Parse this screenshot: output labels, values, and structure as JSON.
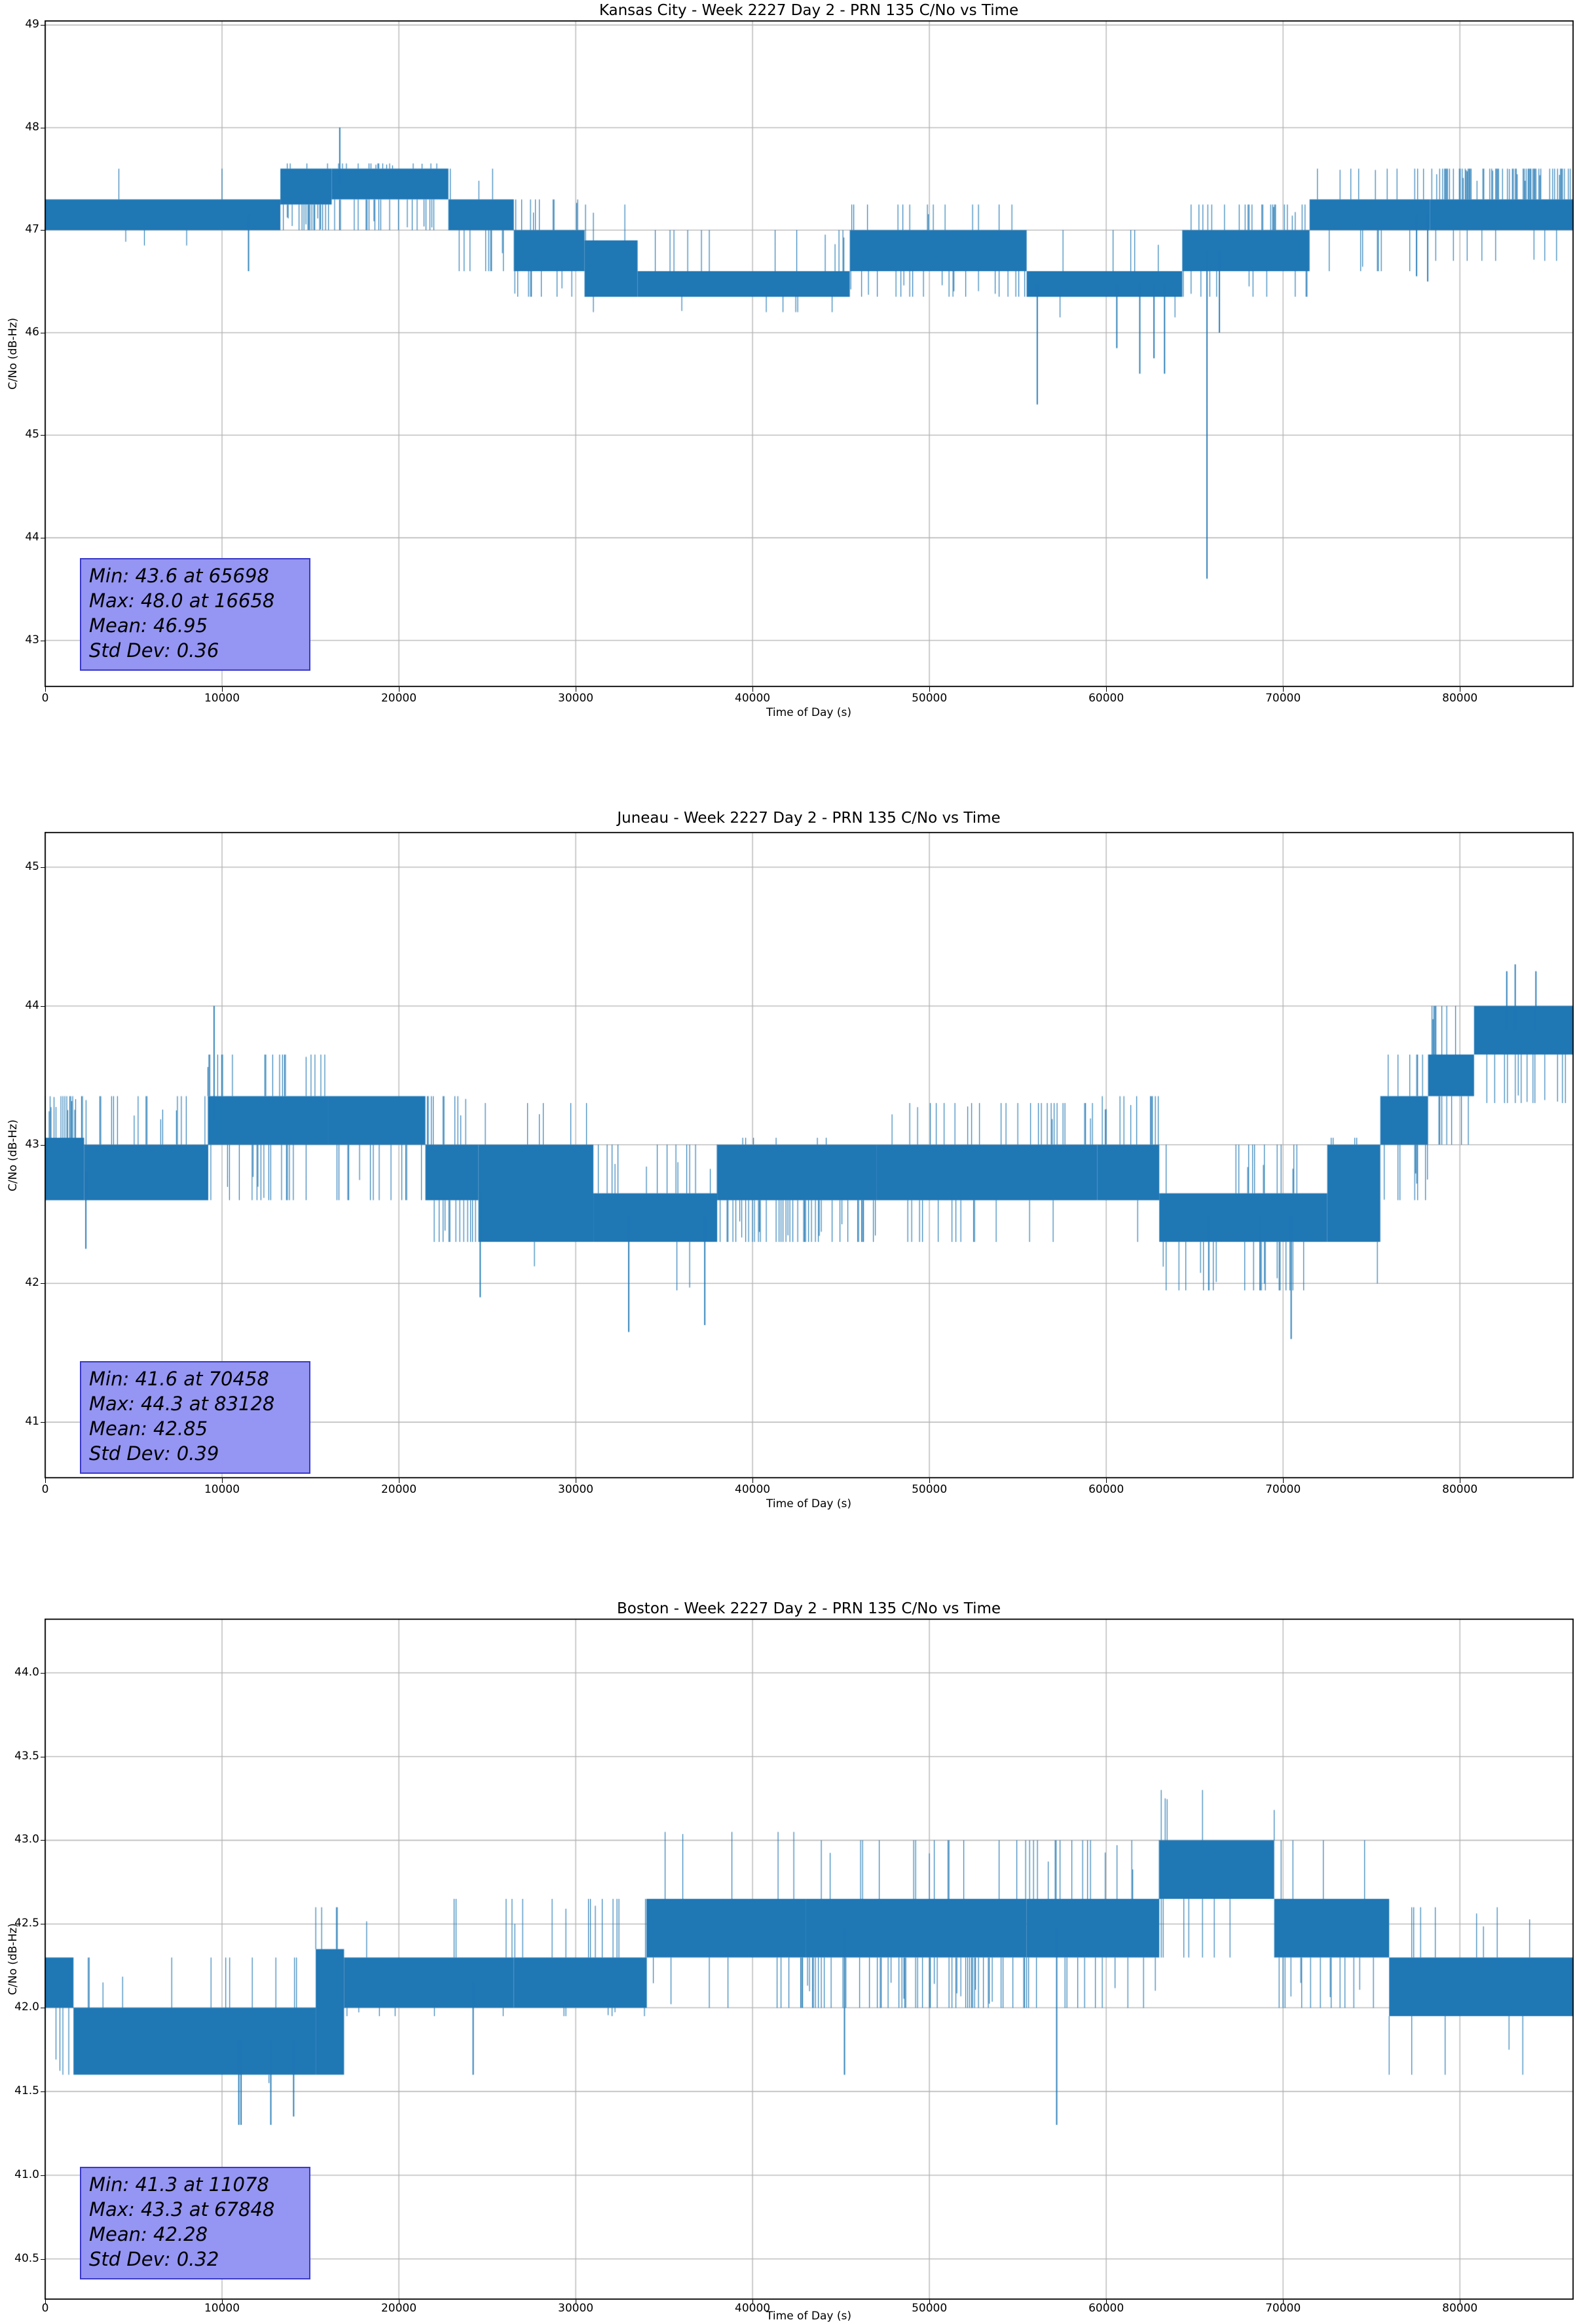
{
  "figure": {
    "background": "#ffffff",
    "line_color": "#1f77b4",
    "grid_color": "#b3b3b3",
    "spine_color": "#000000",
    "stats_box_fill": "#9595f3",
    "stats_box_border": "#3a3ac8"
  },
  "chart_data": [
    {
      "type": "line",
      "title": "Kansas City - Week 2227 Day 2 - PRN 135 C/No vs Time",
      "xlabel": "Time of Day (s)",
      "ylabel": "C/No (dB-Hz)",
      "xlim": [
        0,
        86400
      ],
      "ylim": [
        42.55,
        49.04
      ],
      "xticks": [
        0,
        10000,
        20000,
        30000,
        40000,
        50000,
        60000,
        70000,
        80000
      ],
      "yticks": [
        43,
        44,
        45,
        46,
        47,
        48,
        49
      ],
      "grid": true,
      "stats": {
        "min_value": 43.6,
        "min_time": 65698,
        "max_value": 48.0,
        "max_time": 16658,
        "mean": 46.95,
        "std_dev": 0.36,
        "lines": [
          "Min: 43.6 at 65698",
          "Max: 48.0 at 16658",
          "Mean: 46.95",
          "Std Dev: 0.36"
        ]
      },
      "segments": [
        {
          "t": [
            0,
            13300
          ],
          "core": [
            47.0,
            47.3
          ],
          "up": [
            47.6,
            0.012
          ],
          "down": [
            46.85,
            0.01
          ]
        },
        {
          "t": [
            13300,
            16200
          ],
          "core": [
            47.25,
            47.6
          ],
          "up": [
            47.65,
            0.05
          ],
          "down": [
            47.0,
            0.35
          ]
        },
        {
          "t": [
            16200,
            22800
          ],
          "core": [
            47.3,
            47.6
          ],
          "up": [
            47.65,
            0.08
          ],
          "down": [
            47.0,
            0.15
          ]
        },
        {
          "t": [
            22800,
            26500
          ],
          "core": [
            47.0,
            47.3
          ],
          "up": [
            47.6,
            0.03
          ],
          "down": [
            46.6,
            0.15
          ]
        },
        {
          "t": [
            26500,
            30500
          ],
          "core": [
            46.6,
            47.0
          ],
          "up": [
            47.3,
            0.12
          ],
          "down": [
            46.35,
            0.08
          ]
        },
        {
          "t": [
            30500,
            33500
          ],
          "core": [
            46.35,
            46.9
          ],
          "up": [
            47.25,
            0.1
          ],
          "down": [
            46.2,
            0.04
          ]
        },
        {
          "t": [
            33500,
            45500
          ],
          "core": [
            46.35,
            46.6
          ],
          "up": [
            47.0,
            0.09
          ],
          "down": [
            46.2,
            0.03
          ]
        },
        {
          "t": [
            45500,
            55500
          ],
          "core": [
            46.6,
            47.0
          ],
          "up": [
            47.25,
            0.1
          ],
          "down": [
            46.35,
            0.12
          ]
        },
        {
          "t": [
            55500,
            64300
          ],
          "core": [
            46.35,
            46.6
          ],
          "up": [
            47.0,
            0.05
          ],
          "down": [
            46.15,
            0.03
          ]
        },
        {
          "t": [
            64300,
            71500
          ],
          "core": [
            46.6,
            47.0
          ],
          "up": [
            47.25,
            0.14
          ],
          "down": [
            46.35,
            0.1
          ]
        },
        {
          "t": [
            71500,
            78300
          ],
          "core": [
            47.0,
            47.3
          ],
          "up": [
            47.6,
            0.08
          ],
          "down": [
            46.6,
            0.1
          ]
        },
        {
          "t": [
            78300,
            86400
          ],
          "core": [
            47.0,
            47.3
          ],
          "up": [
            47.6,
            0.45
          ],
          "down": [
            46.7,
            0.05
          ]
        }
      ],
      "spikes": [
        [
          11500,
          46.6
        ],
        [
          16658,
          48.0
        ],
        [
          56100,
          45.3
        ],
        [
          60600,
          45.85
        ],
        [
          61900,
          45.6
        ],
        [
          62700,
          45.75
        ],
        [
          63300,
          45.6
        ],
        [
          65698,
          43.6
        ],
        [
          66400,
          46.0
        ],
        [
          77550,
          46.55
        ],
        [
          78180,
          46.5
        ]
      ]
    },
    {
      "type": "line",
      "title": "Juneau - Week 2227 Day 2 - PRN 135 C/No vs Time",
      "xlabel": "Time of Day (s)",
      "ylabel": "C/No (dB-Hz)",
      "xlim": [
        0,
        86400
      ],
      "ylim": [
        40.6,
        45.25
      ],
      "xticks": [
        0,
        10000,
        20000,
        30000,
        40000,
        50000,
        60000,
        70000,
        80000
      ],
      "yticks": [
        41,
        42,
        43,
        44,
        45
      ],
      "grid": true,
      "stats": {
        "min_value": 41.6,
        "min_time": 70458,
        "max_value": 44.3,
        "max_time": 83128,
        "mean": 42.85,
        "std_dev": 0.39,
        "lines": [
          "Min: 41.6 at 70458",
          "Max: 44.3 at 83128",
          "Mean: 42.85",
          "Std Dev: 0.39"
        ]
      },
      "segments": [
        {
          "t": [
            0,
            2200
          ],
          "core": [
            42.6,
            43.05
          ],
          "up": [
            43.35,
            0.5
          ],
          "down": [
            42.3,
            0.02
          ]
        },
        {
          "t": [
            2200,
            9200
          ],
          "core": [
            42.6,
            43.0
          ],
          "up": [
            43.35,
            0.12
          ],
          "down": [
            42.45,
            0.01
          ]
        },
        {
          "t": [
            9200,
            16000
          ],
          "core": [
            43.0,
            43.35
          ],
          "up": [
            43.65,
            0.18
          ],
          "down": [
            42.6,
            0.18
          ]
        },
        {
          "t": [
            16000,
            21500
          ],
          "core": [
            43.0,
            43.35
          ],
          "up": [
            43.4,
            0.01
          ],
          "down": [
            42.6,
            0.12
          ]
        },
        {
          "t": [
            21500,
            24500
          ],
          "core": [
            42.6,
            43.0
          ],
          "up": [
            43.35,
            0.15
          ],
          "down": [
            42.3,
            0.2
          ]
        },
        {
          "t": [
            24500,
            31000
          ],
          "core": [
            42.3,
            43.0
          ],
          "up": [
            43.3,
            0.05
          ],
          "down": [
            42.0,
            0.02
          ]
        },
        {
          "t": [
            31000,
            38000
          ],
          "core": [
            42.3,
            42.65
          ],
          "up": [
            43.0,
            0.1
          ],
          "down": [
            41.95,
            0.025
          ]
        },
        {
          "t": [
            38000,
            47000
          ],
          "core": [
            42.6,
            43.0
          ],
          "up": [
            43.05,
            0.04
          ],
          "down": [
            42.3,
            0.25
          ]
        },
        {
          "t": [
            47000,
            59500
          ],
          "core": [
            42.6,
            43.0
          ],
          "up": [
            43.3,
            0.1
          ],
          "down": [
            42.3,
            0.08
          ]
        },
        {
          "t": [
            59500,
            63000
          ],
          "core": [
            42.6,
            43.0
          ],
          "up": [
            43.35,
            0.25
          ],
          "down": [
            42.3,
            0.06
          ]
        },
        {
          "t": [
            63000,
            72500
          ],
          "core": [
            42.3,
            42.65
          ],
          "up": [
            43.0,
            0.07
          ],
          "down": [
            41.95,
            0.12
          ]
        },
        {
          "t": [
            72500,
            75500
          ],
          "core": [
            42.3,
            43.0
          ],
          "up": [
            43.05,
            0.12
          ],
          "down": [
            42.0,
            0.03
          ]
        },
        {
          "t": [
            75500,
            78200
          ],
          "core": [
            43.0,
            43.35
          ],
          "up": [
            43.65,
            0.12
          ],
          "down": [
            42.6,
            0.12
          ]
        },
        {
          "t": [
            78200,
            80800
          ],
          "core": [
            43.35,
            43.65
          ],
          "up": [
            44.0,
            0.15
          ],
          "down": [
            43.0,
            0.12
          ]
        },
        {
          "t": [
            80800,
            86400
          ],
          "core": [
            43.65,
            44.0
          ],
          "up": [
            44.1,
            0.02
          ],
          "down": [
            43.3,
            0.15
          ]
        }
      ],
      "spikes": [
        [
          2300,
          42.25
        ],
        [
          9550,
          44.0
        ],
        [
          24600,
          41.9
        ],
        [
          33000,
          41.65
        ],
        [
          37300,
          41.7
        ],
        [
          65800,
          41.95
        ],
        [
          68700,
          41.95
        ],
        [
          70458,
          41.6
        ],
        [
          82650,
          44.25
        ],
        [
          83128,
          44.3
        ],
        [
          84300,
          44.25
        ]
      ]
    },
    {
      "type": "line",
      "title": "Boston - Week 2227 Day 2 - PRN 135 C/No vs Time",
      "xlabel": "Time of Day (s)",
      "ylabel": "C/No (dB-Hz)",
      "xlim": [
        0,
        86400
      ],
      "ylim": [
        40.26,
        44.32
      ],
      "xticks": [
        0,
        10000,
        20000,
        30000,
        40000,
        50000,
        60000,
        70000,
        80000
      ],
      "yticks": [
        40.5,
        41.0,
        41.5,
        42.0,
        42.5,
        43.0,
        43.5,
        44.0
      ],
      "grid": true,
      "stats": {
        "min_value": 41.3,
        "min_time": 11078,
        "max_value": 43.3,
        "max_time": 67848,
        "mean": 42.28,
        "std_dev": 0.32,
        "lines": [
          "Min: 41.3 at 11078",
          "Max: 43.3 at 67848",
          "Mean: 42.28",
          "Std Dev: 0.32"
        ]
      },
      "segments": [
        {
          "t": [
            0,
            1600
          ],
          "core": [
            42.0,
            42.3
          ],
          "up": [
            42.35,
            0.01
          ],
          "down": [
            41.6,
            0.15
          ]
        },
        {
          "t": [
            1600,
            15300
          ],
          "core": [
            41.6,
            42.0
          ],
          "up": [
            42.3,
            0.05
          ],
          "down": [
            41.55,
            0.01
          ]
        },
        {
          "t": [
            15300,
            16900
          ],
          "core": [
            41.6,
            42.35
          ],
          "up": [
            42.6,
            0.08
          ],
          "down": [
            41.6,
            0.02
          ]
        },
        {
          "t": [
            16900,
            26500
          ],
          "core": [
            42.0,
            42.3
          ],
          "up": [
            42.65,
            0.035
          ],
          "down": [
            41.95,
            0.04
          ]
        },
        {
          "t": [
            26500,
            34000
          ],
          "core": [
            42.0,
            42.3
          ],
          "up": [
            42.65,
            0.1
          ],
          "down": [
            41.95,
            0.04
          ]
        },
        {
          "t": [
            34000,
            43000
          ],
          "core": [
            42.3,
            42.65
          ],
          "up": [
            43.05,
            0.07
          ],
          "down": [
            42.0,
            0.08
          ]
        },
        {
          "t": [
            43000,
            55500
          ],
          "core": [
            42.3,
            42.65
          ],
          "up": [
            43.0,
            0.05
          ],
          "down": [
            42.0,
            0.2
          ]
        },
        {
          "t": [
            55500,
            63000
          ],
          "core": [
            42.3,
            42.65
          ],
          "up": [
            43.0,
            0.14
          ],
          "down": [
            42.0,
            0.07
          ]
        },
        {
          "t": [
            63000,
            69500
          ],
          "core": [
            42.65,
            43.0
          ],
          "up": [
            43.3,
            0.06
          ],
          "down": [
            42.3,
            0.1
          ]
        },
        {
          "t": [
            69500,
            76000
          ],
          "core": [
            42.3,
            42.65
          ],
          "up": [
            43.0,
            0.05
          ],
          "down": [
            42.0,
            0.09
          ]
        },
        {
          "t": [
            76000,
            86400
          ],
          "core": [
            41.95,
            42.3
          ],
          "up": [
            42.6,
            0.035
          ],
          "down": [
            41.6,
            0.05
          ]
        }
      ],
      "spikes": [
        [
          10950,
          41.3
        ],
        [
          11078,
          41.3
        ],
        [
          12760,
          41.3
        ],
        [
          14050,
          41.35
        ],
        [
          24200,
          41.6
        ],
        [
          45200,
          41.6
        ],
        [
          57200,
          41.3
        ]
      ]
    }
  ]
}
